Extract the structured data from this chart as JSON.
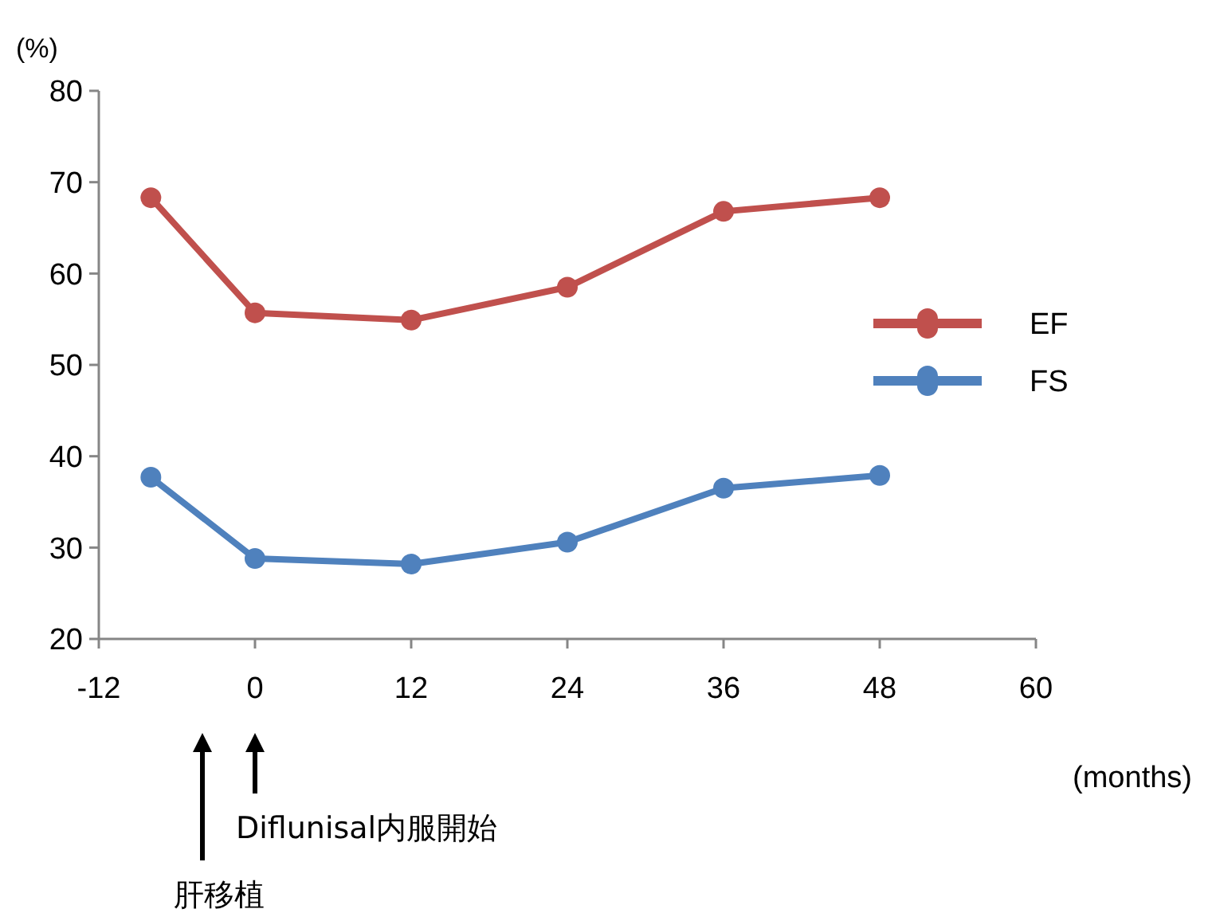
{
  "chart_data": {
    "type": "line",
    "ylabel": "(%)",
    "xlabel": "(months)",
    "x": [
      -8,
      0,
      12,
      24,
      36,
      48
    ],
    "series": [
      {
        "name": "EF",
        "color": "#c0504d",
        "values": [
          68.3,
          55.7,
          54.9,
          58.5,
          66.8,
          68.3
        ]
      },
      {
        "name": "FS",
        "color": "#4f81bd",
        "values": [
          37.7,
          28.8,
          28.2,
          30.6,
          36.5,
          37.9
        ]
      }
    ],
    "xlim": [
      -12,
      60
    ],
    "xticks": [
      -12,
      0,
      12,
      24,
      36,
      48,
      60
    ],
    "ylim": [
      20,
      80
    ],
    "yticks": [
      20,
      30,
      40,
      50,
      60,
      70,
      80
    ],
    "grid": false,
    "legend": "right",
    "marker": "circle",
    "line_style": "solid",
    "annotations": [
      "Diflunisal内服開始",
      "肝移植"
    ]
  }
}
